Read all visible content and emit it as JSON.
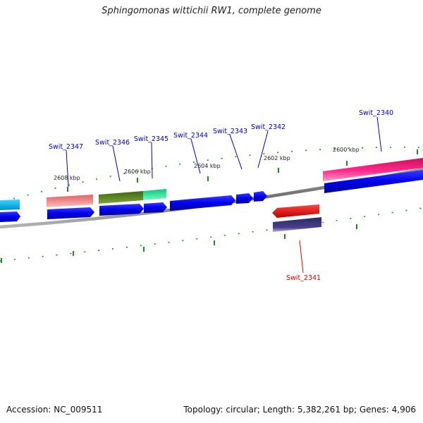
{
  "title": "Sphingomonas wittichii RW1, complete genome",
  "footer": {
    "accession": "Accession: NC_009511",
    "summary": "Topology: circular; Length: 5,382,261 bp; Genes: 4,906"
  },
  "ticks": [
    "2608 kbp",
    "2606 kbp",
    "2604 kbp",
    "2602 kbp",
    "2600 kbp"
  ],
  "colors": {
    "backbone": "#777777",
    "tick": "#228822",
    "cds_forward": "#0000ee",
    "label_forward": "#0000cc",
    "label_reverse": "#dd0000"
  },
  "genes": [
    {
      "name": "Swit_2347"
    },
    {
      "name": "Swit_2346"
    },
    {
      "name": "Swit_2345"
    },
    {
      "name": "Swit_2344"
    },
    {
      "name": "Swit_2343"
    },
    {
      "name": "Swit_2342"
    },
    {
      "name": "Swit_2340"
    },
    {
      "name": "Swit_2341"
    }
  ]
}
